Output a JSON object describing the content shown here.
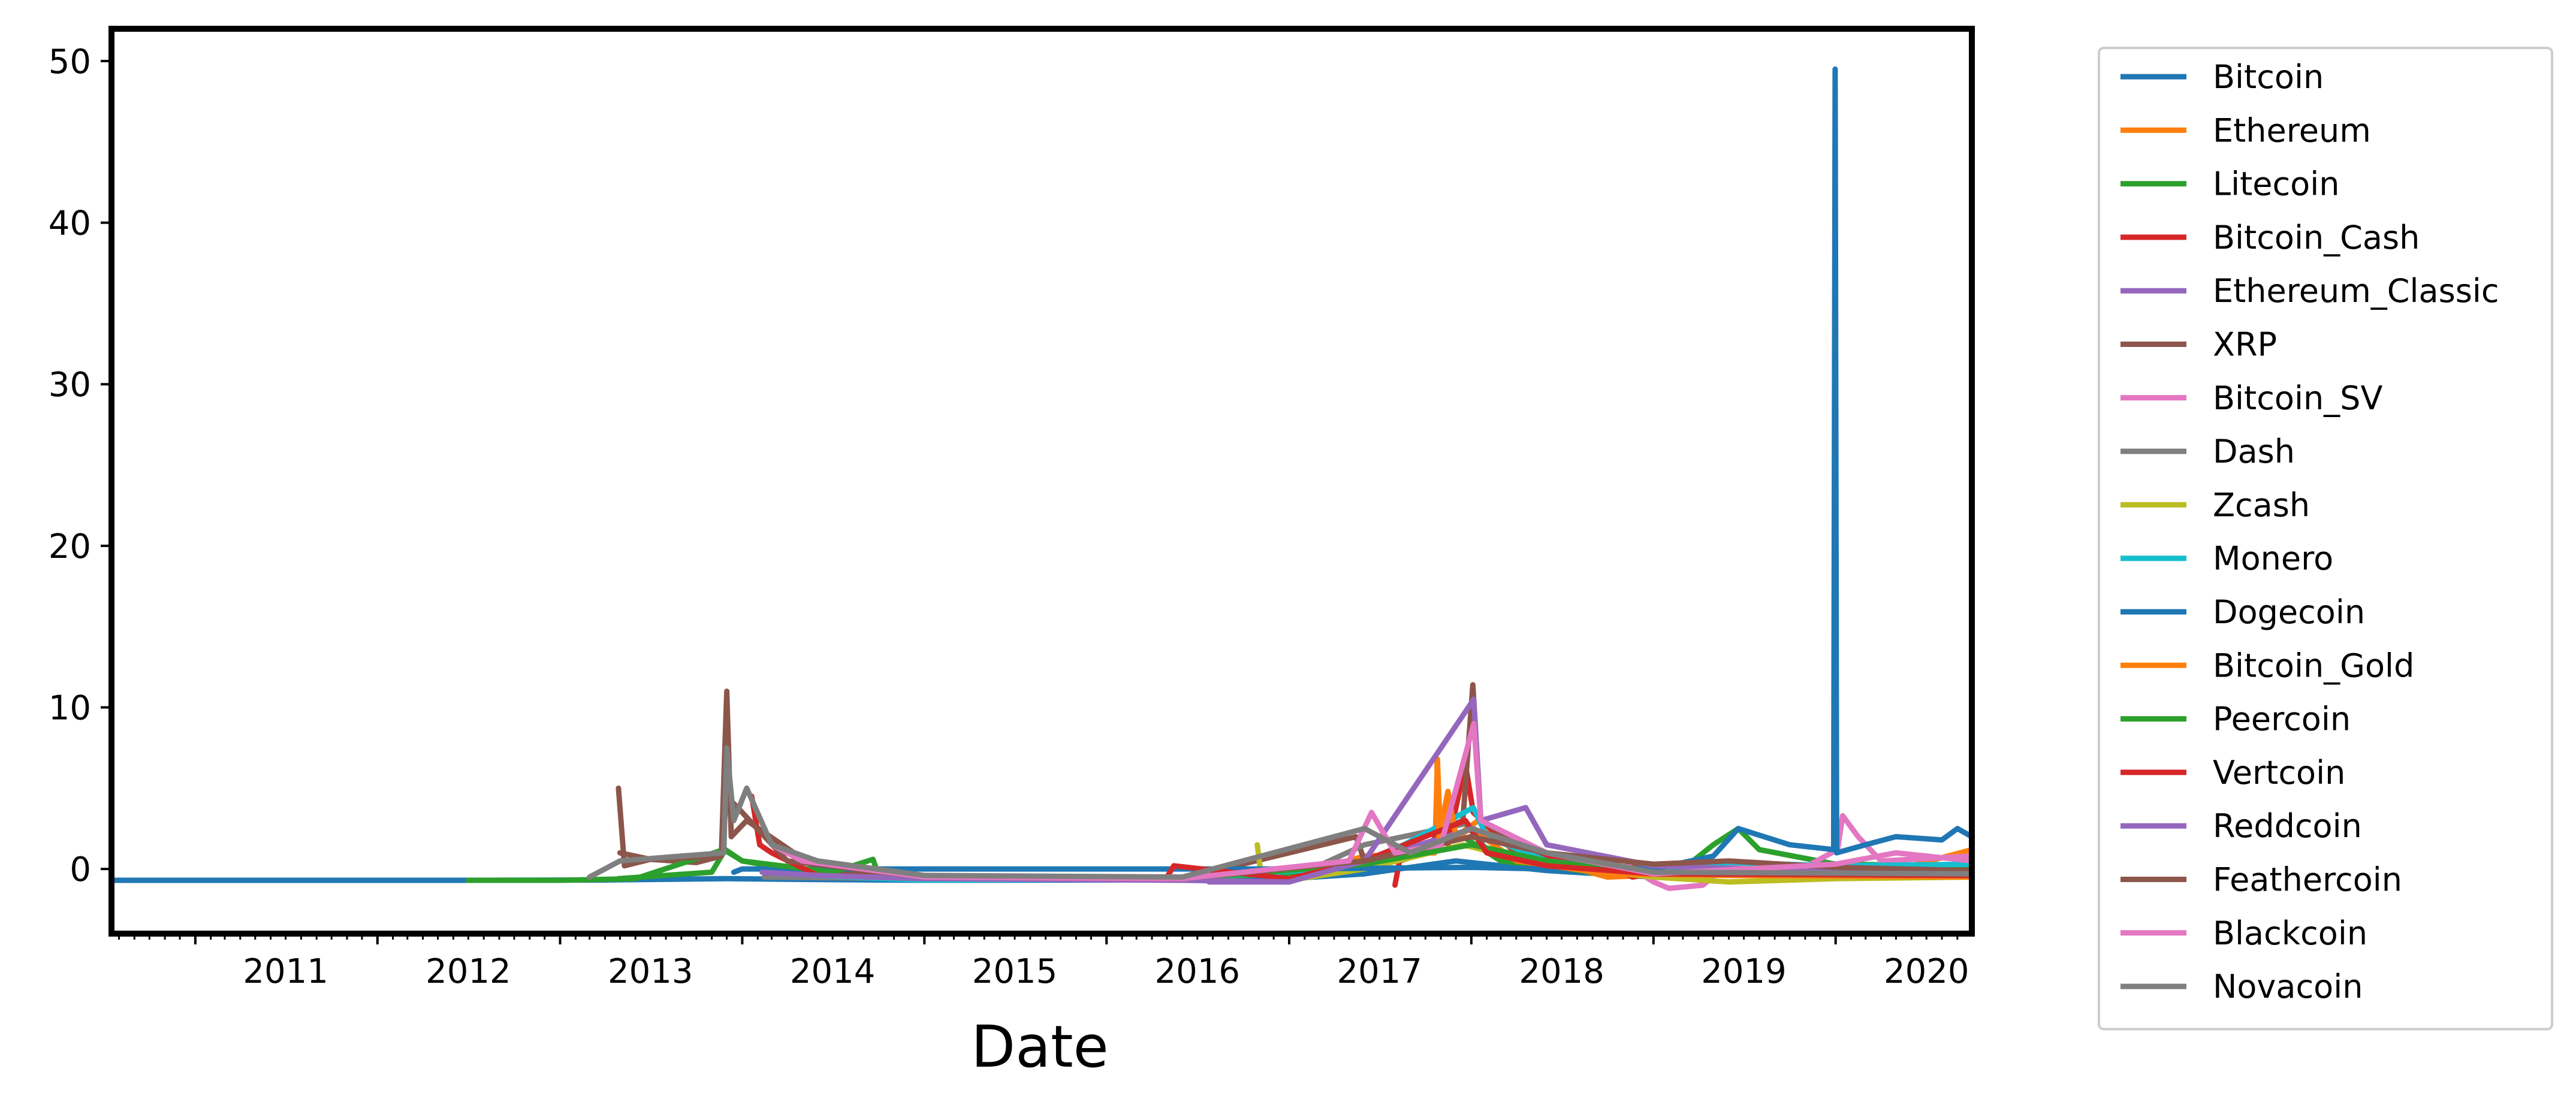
{
  "chart_data": {
    "type": "line",
    "title": "",
    "xlabel": "Date",
    "ylabel": "",
    "x_axis": "date",
    "xlim": [
      "2010-07-17",
      "2020-09-30"
    ],
    "ylim": [
      -4,
      52
    ],
    "xticks": [
      "2011",
      "2012",
      "2013",
      "2014",
      "2015",
      "2016",
      "2017",
      "2018",
      "2019",
      "2020"
    ],
    "yticks": [
      0,
      10,
      20,
      30,
      40,
      50
    ],
    "grid": false,
    "legend_position": "outside-right",
    "series": [
      {
        "name": "Bitcoin",
        "color": "#1f77b4",
        "points": [
          [
            "2010-07-17",
            -0.7
          ],
          [
            "2011-06-01",
            -0.7
          ],
          [
            "2012-06-01",
            -0.7
          ],
          [
            "2013-04-01",
            -0.68
          ],
          [
            "2013-12-01",
            -0.6
          ],
          [
            "2014-06-01",
            -0.65
          ],
          [
            "2015-01-01",
            -0.7
          ],
          [
            "2016-01-01",
            -0.68
          ],
          [
            "2017-01-01",
            -0.6
          ],
          [
            "2017-06-01",
            -0.3
          ],
          [
            "2017-12-01",
            0.5
          ],
          [
            "2018-06-01",
            -0.1
          ],
          [
            "2019-01-01",
            -0.5
          ],
          [
            "2019-06-01",
            -0.3
          ],
          [
            "2020-01-01",
            -0.4
          ],
          [
            "2020-09-30",
            -0.2
          ]
        ]
      },
      {
        "name": "Ethereum",
        "color": "#ff7f0e",
        "points": [
          [
            "2015-08-07",
            -0.6
          ],
          [
            "2016-06-01",
            -0.5
          ],
          [
            "2017-03-01",
            0.0
          ],
          [
            "2017-06-01",
            0.8
          ],
          [
            "2017-10-20",
            1.0
          ],
          [
            "2017-10-25",
            6.8
          ],
          [
            "2017-11-01",
            1.2
          ],
          [
            "2017-11-15",
            4.8
          ],
          [
            "2017-12-01",
            2.0
          ],
          [
            "2018-01-15",
            3.0
          ],
          [
            "2018-04-01",
            1.0
          ],
          [
            "2018-10-01",
            -0.5
          ],
          [
            "2019-06-01",
            -0.2
          ],
          [
            "2020-01-01",
            -0.3
          ],
          [
            "2020-06-01",
            0.2
          ],
          [
            "2020-09-30",
            1.2
          ]
        ]
      },
      {
        "name": "Litecoin",
        "color": "#2ca02c",
        "points": [
          [
            "2013-04-28",
            -0.6
          ],
          [
            "2013-11-01",
            -0.2
          ],
          [
            "2013-11-28",
            1.2
          ],
          [
            "2014-01-01",
            0.5
          ],
          [
            "2014-06-01",
            -0.3
          ],
          [
            "2015-01-01",
            -0.6
          ],
          [
            "2016-06-01",
            -0.6
          ],
          [
            "2017-06-01",
            0.0
          ],
          [
            "2017-12-15",
            2.0
          ],
          [
            "2018-03-01",
            0.5
          ],
          [
            "2018-10-01",
            -0.3
          ],
          [
            "2019-03-01",
            0.0
          ],
          [
            "2019-05-01",
            1.5
          ],
          [
            "2019-06-20",
            2.5
          ],
          [
            "2019-08-01",
            1.2
          ],
          [
            "2020-01-01",
            0.3
          ],
          [
            "2020-09-30",
            0.2
          ]
        ]
      },
      {
        "name": "Bitcoin_Cash",
        "color": "#d62728",
        "points": [
          [
            "2017-08-01",
            -1.0
          ],
          [
            "2017-08-10",
            0.5
          ],
          [
            "2017-10-01",
            1.0
          ],
          [
            "2017-11-10",
            3.0
          ],
          [
            "2017-11-15",
            1.5
          ],
          [
            "2017-12-20",
            6.5
          ],
          [
            "2018-01-05",
            3.5
          ],
          [
            "2018-04-01",
            1.0
          ],
          [
            "2018-10-01",
            0.3
          ],
          [
            "2018-11-20",
            -0.5
          ],
          [
            "2019-06-01",
            0.4
          ],
          [
            "2020-01-01",
            0.0
          ],
          [
            "2020-09-30",
            -0.2
          ]
        ]
      },
      {
        "name": "Ethereum_Classic",
        "color": "#9467bd",
        "points": [
          [
            "2016-07-24",
            -0.8
          ],
          [
            "2017-01-01",
            -0.8
          ],
          [
            "2017-06-01",
            0.5
          ],
          [
            "2018-01-05",
            2.5
          ],
          [
            "2018-06-01",
            0.5
          ],
          [
            "2019-01-01",
            -0.4
          ],
          [
            "2020-01-01",
            -0.3
          ],
          [
            "2020-09-30",
            -0.2
          ]
        ]
      },
      {
        "name": "XRP",
        "color": "#8c564b",
        "points": [
          [
            "2013-04-28",
            5.0
          ],
          [
            "2013-05-10",
            0.2
          ],
          [
            "2013-07-01",
            0.6
          ],
          [
            "2013-10-01",
            0.4
          ],
          [
            "2013-11-20",
            0.8
          ],
          [
            "2013-12-01",
            11.0
          ],
          [
            "2013-12-10",
            2.0
          ],
          [
            "2014-01-10",
            3.0
          ],
          [
            "2014-06-01",
            0.0
          ],
          [
            "2015-01-01",
            -0.6
          ],
          [
            "2016-06-01",
            -0.6
          ],
          [
            "2017-05-15",
            2.0
          ],
          [
            "2017-06-01",
            0.5
          ],
          [
            "2017-12-15",
            3.0
          ],
          [
            "2018-01-04",
            11.4
          ],
          [
            "2018-01-20",
            3.0
          ],
          [
            "2018-06-01",
            0.5
          ],
          [
            "2019-01-01",
            0.0
          ],
          [
            "2020-01-01",
            -0.3
          ],
          [
            "2020-09-30",
            -0.3
          ]
        ]
      },
      {
        "name": "Bitcoin_SV",
        "color": "#e377c2",
        "points": [
          [
            "2018-11-10",
            0.2
          ],
          [
            "2019-01-01",
            -0.8
          ],
          [
            "2019-02-01",
            -1.2
          ],
          [
            "2019-04-10",
            -1.0
          ],
          [
            "2019-06-01",
            0.3
          ],
          [
            "2019-10-01",
            -0.4
          ],
          [
            "2020-01-05",
            1.2
          ],
          [
            "2020-01-15",
            3.3
          ],
          [
            "2020-02-15",
            2.0
          ],
          [
            "2020-04-01",
            0.5
          ],
          [
            "2020-09-30",
            0.8
          ]
        ]
      },
      {
        "name": "Dash",
        "color": "#7f7f7f",
        "points": [
          [
            "2014-02-14",
            -0.5
          ],
          [
            "2015-01-01",
            -0.6
          ],
          [
            "2016-06-01",
            -0.5
          ],
          [
            "2017-03-01",
            0.2
          ],
          [
            "2017-06-01",
            1.5
          ],
          [
            "2017-12-20",
            2.8
          ],
          [
            "2018-02-01",
            1.2
          ],
          [
            "2018-06-01",
            0.5
          ],
          [
            "2019-01-01",
            -0.2
          ],
          [
            "2020-09-30",
            -0.3
          ]
        ]
      },
      {
        "name": "Zcash",
        "color": "#bcbd22",
        "points": [
          [
            "2016-10-29",
            1.5
          ],
          [
            "2016-11-05",
            -0.2
          ],
          [
            "2017-01-01",
            -0.7
          ],
          [
            "2017-06-01",
            0.0
          ],
          [
            "2017-12-15",
            1.5
          ],
          [
            "2018-06-01",
            0.2
          ],
          [
            "2019-01-01",
            -0.5
          ],
          [
            "2019-06-01",
            -0.8
          ],
          [
            "2020-01-01",
            -0.6
          ],
          [
            "2020-09-30",
            -0.5
          ]
        ]
      },
      {
        "name": "Monero",
        "color": "#17becf",
        "points": [
          [
            "2014-05-21",
            -0.4
          ],
          [
            "2015-01-01",
            -0.7
          ],
          [
            "2016-06-01",
            -0.6
          ],
          [
            "2017-06-01",
            0.2
          ],
          [
            "2018-01-05",
            3.8
          ],
          [
            "2018-02-01",
            2.0
          ],
          [
            "2018-06-01",
            0.5
          ],
          [
            "2019-01-01",
            -0.3
          ],
          [
            "2019-06-01",
            0.4
          ],
          [
            "2020-01-01",
            0.2
          ],
          [
            "2020-09-30",
            0.3
          ]
        ]
      },
      {
        "name": "Dogecoin",
        "color": "#1f77b4",
        "points": [
          [
            "2013-12-15",
            -0.2
          ],
          [
            "2014-01-01",
            0.0
          ],
          [
            "2015-01-01",
            0.0
          ],
          [
            "2017-01-01",
            0.0
          ],
          [
            "2018-01-01",
            0.1
          ],
          [
            "2018-06-01",
            0.0
          ],
          [
            "2019-01-01",
            0.0
          ],
          [
            "2019-05-01",
            0.8
          ],
          [
            "2019-06-20",
            2.5
          ],
          [
            "2019-10-01",
            1.5
          ],
          [
            "2019-12-28",
            1.2
          ],
          [
            "2019-12-31",
            49.5
          ],
          [
            "2020-01-03",
            1.0
          ],
          [
            "2020-03-01",
            1.5
          ],
          [
            "2020-05-01",
            2.0
          ],
          [
            "2020-08-01",
            1.8
          ],
          [
            "2020-09-01",
            2.5
          ],
          [
            "2020-09-30",
            2.0
          ]
        ]
      },
      {
        "name": "Bitcoin_Gold",
        "color": "#ff7f0e",
        "points": [
          [
            "2017-10-24",
            6.8
          ],
          [
            "2017-10-28",
            2.0
          ],
          [
            "2017-11-15",
            4.8
          ],
          [
            "2017-12-01",
            2.0
          ],
          [
            "2018-01-01",
            2.5
          ],
          [
            "2018-04-01",
            0.5
          ],
          [
            "2018-10-01",
            -0.3
          ],
          [
            "2019-06-01",
            -0.4
          ],
          [
            "2020-09-30",
            -0.5
          ]
        ]
      },
      {
        "name": "Peercoin",
        "color": "#2ca02c",
        "points": [
          [
            "2012-07-01",
            -0.7
          ],
          [
            "2013-01-01",
            -0.7
          ],
          [
            "2013-06-01",
            -0.6
          ],
          [
            "2013-11-25",
            1.2
          ],
          [
            "2014-01-01",
            0.5
          ],
          [
            "2014-07-01",
            -0.2
          ],
          [
            "2014-09-20",
            0.6
          ],
          [
            "2014-10-01",
            -0.4
          ],
          [
            "2015-06-01",
            -0.6
          ],
          [
            "2016-06-01",
            -0.6
          ],
          [
            "2017-06-01",
            0.3
          ],
          [
            "2018-01-01",
            1.5
          ],
          [
            "2018-06-01",
            0.5
          ],
          [
            "2019-01-01",
            -0.3
          ],
          [
            "2020-09-30",
            -0.4
          ]
        ]
      },
      {
        "name": "Vertcoin",
        "color": "#d62728",
        "points": [
          [
            "2014-01-20",
            4.5
          ],
          [
            "2014-02-05",
            1.5
          ],
          [
            "2014-03-01",
            1.0
          ],
          [
            "2014-06-01",
            -0.4
          ],
          [
            "2015-01-01",
            -0.6
          ],
          [
            "2016-05-01",
            -0.5
          ],
          [
            "2016-05-15",
            0.2
          ],
          [
            "2017-01-01",
            -0.6
          ],
          [
            "2017-06-01",
            0.5
          ],
          [
            "2017-12-20",
            3.0
          ],
          [
            "2018-02-01",
            1.0
          ],
          [
            "2018-06-01",
            0.2
          ],
          [
            "2019-01-01",
            -0.3
          ],
          [
            "2020-09-30",
            -0.4
          ]
        ]
      },
      {
        "name": "Reddcoin",
        "color": "#9467bd",
        "points": [
          [
            "2014-02-10",
            -0.2
          ],
          [
            "2014-06-01",
            -0.4
          ],
          [
            "2015-01-01",
            -0.6
          ],
          [
            "2016-06-01",
            -0.7
          ],
          [
            "2017-01-01",
            -0.8
          ],
          [
            "2017-06-01",
            0.5
          ],
          [
            "2018-01-06",
            10.5
          ],
          [
            "2018-01-20",
            3.0
          ],
          [
            "2018-04-20",
            3.8
          ],
          [
            "2018-06-01",
            1.5
          ],
          [
            "2019-01-01",
            0.2
          ],
          [
            "2020-01-01",
            -0.2
          ],
          [
            "2020-09-30",
            -0.2
          ]
        ]
      },
      {
        "name": "Feathercoin",
        "color": "#8c564b",
        "points": [
          [
            "2013-05-01",
            1.0
          ],
          [
            "2013-07-01",
            0.6
          ],
          [
            "2013-11-20",
            0.8
          ],
          [
            "2013-12-01",
            4.5
          ],
          [
            "2014-01-01",
            3.5
          ],
          [
            "2014-04-01",
            0.5
          ],
          [
            "2015-01-01",
            -0.5
          ],
          [
            "2016-06-01",
            -0.6
          ],
          [
            "2017-06-01",
            0.5
          ],
          [
            "2018-01-01",
            2.0
          ],
          [
            "2018-06-01",
            1.0
          ],
          [
            "2019-01-01",
            0.3
          ],
          [
            "2019-06-01",
            0.5
          ],
          [
            "2020-01-01",
            0.1
          ],
          [
            "2020-09-30",
            -0.1
          ]
        ]
      },
      {
        "name": "Blackcoin",
        "color": "#e377c2",
        "points": [
          [
            "2014-03-01",
            1.5
          ],
          [
            "2014-05-01",
            0.5
          ],
          [
            "2015-01-01",
            -0.5
          ],
          [
            "2016-06-01",
            -0.6
          ],
          [
            "2017-05-01",
            0.5
          ],
          [
            "2017-06-15",
            3.5
          ],
          [
            "2017-08-01",
            1.0
          ],
          [
            "2017-11-01",
            1.5
          ],
          [
            "2018-01-06",
            9.0
          ],
          [
            "2018-01-20",
            3.0
          ],
          [
            "2018-06-01",
            1.0
          ],
          [
            "2019-01-01",
            -0.3
          ],
          [
            "2020-01-01",
            0.3
          ],
          [
            "2020-05-01",
            1.0
          ],
          [
            "2020-09-30",
            0.5
          ]
        ]
      },
      {
        "name": "Novacoin",
        "color": "#7f7f7f",
        "points": [
          [
            "2013-03-01",
            -0.5
          ],
          [
            "2013-05-01",
            0.5
          ],
          [
            "2013-09-01",
            0.8
          ],
          [
            "2013-11-25",
            1.0
          ],
          [
            "2013-12-01",
            7.5
          ],
          [
            "2013-12-15",
            3.0
          ],
          [
            "2014-01-10",
            5.0
          ],
          [
            "2014-03-01",
            1.5
          ],
          [
            "2014-06-01",
            0.5
          ],
          [
            "2015-01-01",
            -0.4
          ],
          [
            "2016-06-01",
            -0.5
          ],
          [
            "2017-06-01",
            2.5
          ],
          [
            "2017-09-01",
            1.0
          ],
          [
            "2018-01-01",
            2.5
          ],
          [
            "2018-06-01",
            1.0
          ],
          [
            "2019-01-01",
            -0.2
          ],
          [
            "2020-09-30",
            -0.3
          ]
        ]
      }
    ]
  }
}
